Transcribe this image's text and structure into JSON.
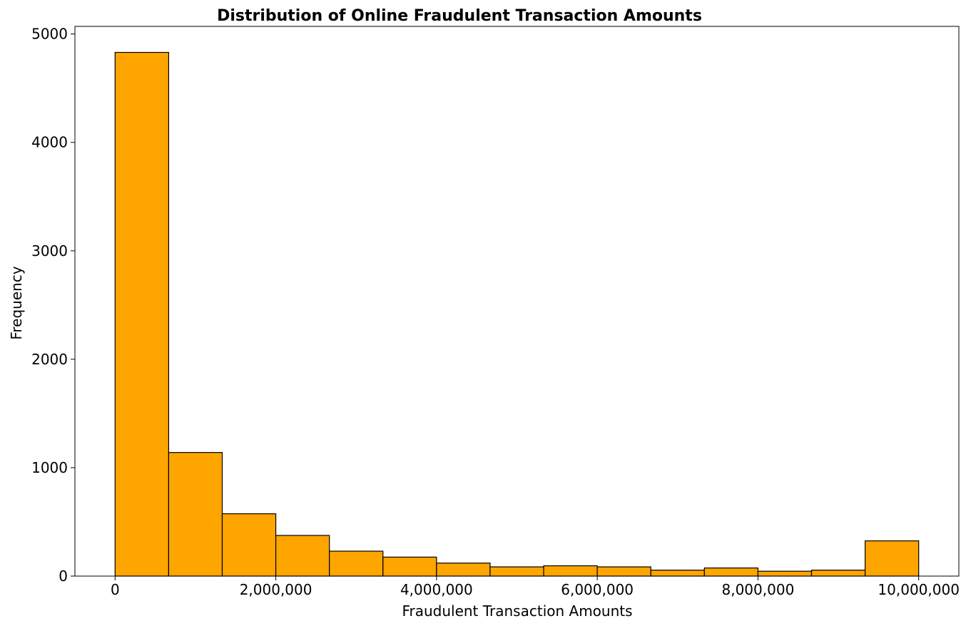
{
  "chart_data": {
    "type": "bar",
    "title": "Distribution of Online Fraudulent Transaction Amounts",
    "xlabel": "Fraudulent Transaction Amounts",
    "ylabel": "Frequency",
    "xlim": [
      -500000,
      10500000
    ],
    "ylim": [
      0,
      5070
    ],
    "bin_edges": [
      0,
      666667,
      1333333,
      2000000,
      2666667,
      3333333,
      4000000,
      4666667,
      5333333,
      6000000,
      6666667,
      7333333,
      8000000,
      8666667,
      9333333,
      10000000
    ],
    "values": [
      4830,
      1140,
      575,
      375,
      230,
      175,
      120,
      85,
      95,
      85,
      55,
      75,
      45,
      55,
      325
    ],
    "bar_color": "#FFA500",
    "edge_color": "#000000",
    "x_ticks": [
      {
        "value": 0,
        "label": "0"
      },
      {
        "value": 2000000,
        "label": "2,000,000"
      },
      {
        "value": 4000000,
        "label": "4,000,000"
      },
      {
        "value": 6000000,
        "label": "6,000,000"
      },
      {
        "value": 8000000,
        "label": "8,000,000"
      },
      {
        "value": 10000000,
        "label": "10,000,000"
      }
    ],
    "y_ticks": [
      {
        "value": 0,
        "label": "0"
      },
      {
        "value": 1000,
        "label": "1000"
      },
      {
        "value": 2000,
        "label": "2000"
      },
      {
        "value": 3000,
        "label": "3000"
      },
      {
        "value": 4000,
        "label": "4000"
      },
      {
        "value": 5000,
        "label": "5000"
      }
    ],
    "grid": false,
    "legend": "none"
  }
}
